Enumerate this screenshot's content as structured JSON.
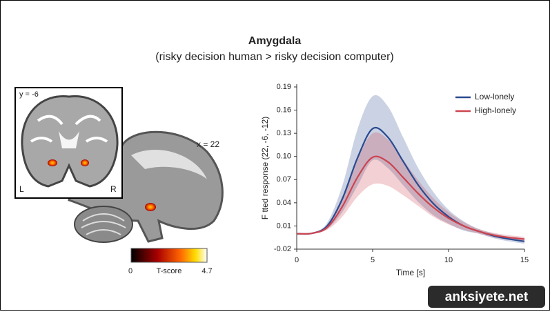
{
  "header": {
    "title": "Amygdala",
    "subtitle": "(risky decision human > risky decision computer)"
  },
  "brain_panel": {
    "coronal_label": "y = -6",
    "left_label": "L",
    "right_label": "R",
    "sagittal_label": "x = 22",
    "colorbar": {
      "min": 0,
      "max": 4.7,
      "label": "T-score"
    }
  },
  "chart_data": {
    "type": "line",
    "xlabel": "Time [s]",
    "ylabel": "F tted response (22, -6, -12)",
    "x": [
      0,
      1,
      2,
      3,
      4,
      5,
      6,
      7,
      8,
      9,
      10,
      11,
      12,
      13,
      14,
      15
    ],
    "xlim": [
      0,
      15
    ],
    "xticks": [
      0,
      5,
      10,
      15
    ],
    "ylim": [
      -0.02,
      0.19
    ],
    "yticks": [
      -0.02,
      0.01,
      0.04,
      0.07,
      {
        "value": 0.1,
        "label": "0.10"
      },
      0.13,
      0.16,
      0.19
    ],
    "legend": "upper right",
    "series": [
      {
        "name": "Low-lonely",
        "color": "#2a4a90",
        "values": [
          0,
          0.0005,
          0.01,
          0.045,
          0.098,
          0.136,
          0.125,
          0.094,
          0.063,
          0.039,
          0.022,
          0.01,
          0.003,
          -0.003,
          -0.007,
          -0.01
        ],
        "upper": [
          0,
          0.001,
          0.014,
          0.062,
          0.135,
          0.178,
          0.165,
          0.125,
          0.085,
          0.054,
          0.031,
          0.016,
          0.006,
          0,
          -0.004,
          -0.007
        ],
        "lower": [
          0,
          0,
          0.006,
          0.028,
          0.062,
          0.095,
          0.085,
          0.063,
          0.041,
          0.024,
          0.013,
          0.004,
          0,
          -0.006,
          -0.01,
          -0.013
        ]
      },
      {
        "name": "High-lonely",
        "color": "#cc4450",
        "values": [
          0,
          0.0005,
          0.008,
          0.035,
          0.073,
          0.099,
          0.093,
          0.073,
          0.052,
          0.034,
          0.02,
          0.01,
          0.003,
          -0.002,
          -0.005,
          -0.007
        ],
        "upper": [
          0,
          0.001,
          0.011,
          0.048,
          0.097,
          0.13,
          0.122,
          0.096,
          0.069,
          0.046,
          0.028,
          0.015,
          0.006,
          0.001,
          -0.002,
          -0.004
        ],
        "lower": [
          0,
          0,
          0.005,
          0.022,
          0.048,
          0.064,
          0.062,
          0.05,
          0.036,
          0.022,
          0.012,
          0.005,
          0,
          -0.005,
          -0.008,
          -0.01
        ]
      }
    ]
  },
  "watermark": "anksiyete.net"
}
